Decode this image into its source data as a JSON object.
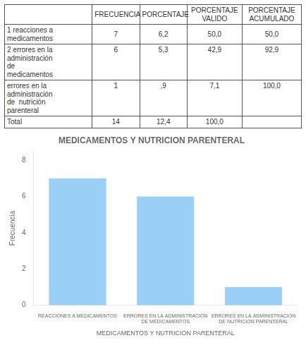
{
  "chart_data": [
    {
      "type": "table",
      "columns": [
        "FRECUENCIA",
        "PORCENTAJE",
        "PORCENTAJE\nVALIDO",
        "PORCENTAJE\nACUMULADO"
      ],
      "rows": [
        {
          "label": "1 reacciones a\nmedicamentos",
          "values": [
            "7",
            "6,2",
            "50,0",
            "50,0"
          ]
        },
        {
          "label": "2 errores en la\nadministración\nde\nmedicamentos",
          "values": [
            "6",
            "5,3",
            "42,9",
            "92,9"
          ]
        },
        {
          "label": "errores en la\nadministración\nde  nutrición\nparenteral",
          "values": [
            "1",
            ",9",
            "7,1",
            "100,0"
          ]
        },
        {
          "label": "Total",
          "values": [
            "14",
            "12,4",
            "100,0",
            null
          ]
        }
      ]
    },
    {
      "type": "bar",
      "title": "MEDICAMENTOS Y NUTRICION PARENTERAL",
      "categories": [
        "REACCIONES A MEDICAMENTOS",
        "ERRORES EN LA ADMINISTRACION\nDE MEDICAMENTOS",
        "ERRORES EN LA ADMINISTRACION\nDE NUTRICION PARENTERAL"
      ],
      "values": [
        7,
        6,
        1
      ],
      "xlabel": "MEDICAMENTOS Y NUTRICION PARENTERAL",
      "ylabel": "Frecuencia",
      "ylim": [
        0,
        8.5
      ],
      "yticks": [
        0,
        2,
        4,
        6,
        8
      ],
      "grid": false
    }
  ]
}
